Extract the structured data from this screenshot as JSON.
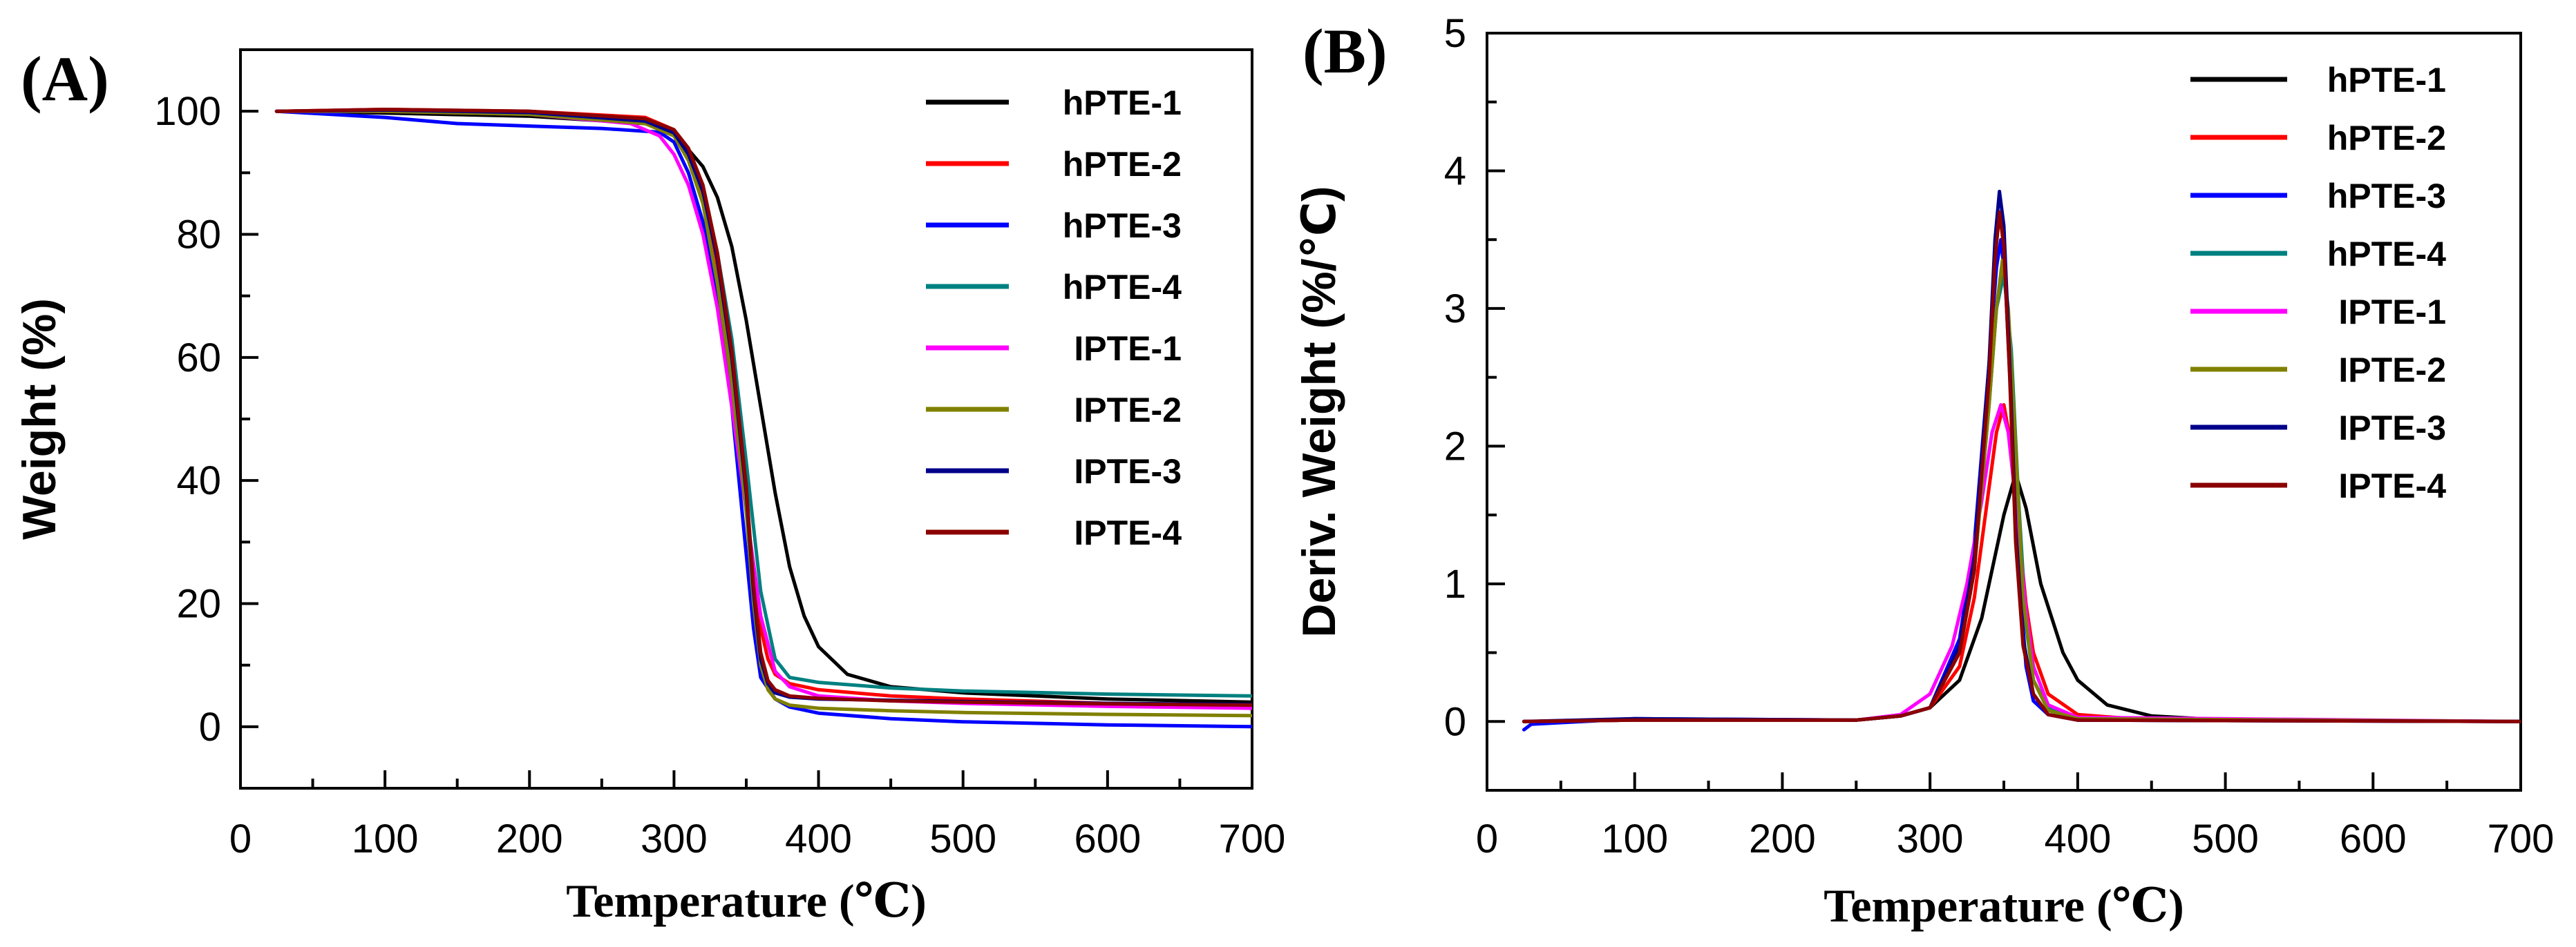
{
  "chart_data": [
    {
      "type": "line",
      "panel_label": "(A)",
      "title": "",
      "xlabel": "Temperature (℃)",
      "ylabel": "Weight (%)",
      "xlim": [
        0,
        700
      ],
      "ylim": [
        -10,
        110
      ],
      "xticks": [
        0,
        100,
        200,
        300,
        400,
        500,
        600,
        700
      ],
      "yticks": [
        0,
        20,
        40,
        60,
        80,
        100
      ],
      "grid": false,
      "legend_position": "top-right",
      "series": [
        {
          "name": "hPTE-1",
          "color": "#000000",
          "x": [
            25,
            100,
            200,
            280,
            300,
            320,
            330,
            340,
            350,
            360,
            370,
            380,
            390,
            400,
            420,
            450,
            500,
            600,
            700
          ],
          "y": [
            100,
            99.7,
            99.2,
            98,
            96.5,
            91,
            86,
            78,
            66,
            52,
            38,
            26,
            18,
            13,
            8.5,
            6.5,
            5.5,
            4.5,
            4
          ]
        },
        {
          "name": "hPTE-2",
          "color": "#ff0000",
          "x": [
            25,
            100,
            200,
            280,
            300,
            310,
            320,
            330,
            340,
            345,
            350,
            355,
            360,
            365,
            370,
            380,
            400,
            450,
            500,
            600,
            700
          ],
          "y": [
            100,
            100.3,
            100,
            99,
            97,
            93,
            86,
            74,
            58,
            47,
            36,
            25,
            16,
            11,
            8.5,
            7,
            6,
            5,
            4.5,
            3.8,
            3.5
          ]
        },
        {
          "name": "hPTE-3",
          "color": "#0000ff",
          "x": [
            25,
            100,
            150,
            200,
            250,
            290,
            300,
            310,
            320,
            330,
            340,
            345,
            350,
            355,
            360,
            370,
            380,
            400,
            450,
            500,
            600,
            700
          ],
          "y": [
            100,
            99,
            98,
            97.6,
            97.2,
            96.6,
            95,
            90,
            82,
            69,
            52,
            40,
            28,
            16,
            8,
            4.5,
            3.2,
            2.2,
            1.3,
            0.8,
            0.3,
            0
          ]
        },
        {
          "name": "hPTE-4",
          "color": "#008080",
          "x": [
            25,
            100,
            200,
            280,
            300,
            310,
            320,
            330,
            340,
            350,
            360,
            370,
            380,
            400,
            450,
            500,
            600,
            700
          ],
          "y": [
            100,
            100.2,
            99.8,
            98.5,
            96.5,
            93,
            87,
            77,
            63,
            43,
            22,
            11,
            8,
            7.2,
            6.3,
            5.8,
            5.3,
            5
          ]
        },
        {
          "name": "IPTE-1",
          "color": "#ff00ff",
          "x": [
            25,
            100,
            200,
            270,
            290,
            300,
            310,
            320,
            330,
            340,
            350,
            360,
            370,
            380,
            400,
            450,
            500,
            600,
            700
          ],
          "y": [
            100,
            100,
            99.5,
            98,
            96,
            93,
            88,
            80,
            68,
            52,
            35,
            18,
            9,
            6.5,
            5,
            4.2,
            3.8,
            3.3,
            3
          ]
        },
        {
          "name": "IPTE-2",
          "color": "#808000",
          "x": [
            25,
            100,
            200,
            280,
            300,
            310,
            320,
            330,
            340,
            350,
            355,
            360,
            365,
            370,
            380,
            400,
            450,
            500,
            600,
            700
          ],
          "y": [
            100,
            100,
            99.5,
            98,
            96,
            92,
            85,
            72,
            56,
            35,
            20,
            10,
            6,
            4.5,
            3.5,
            3,
            2.6,
            2.3,
            2,
            1.8
          ]
        },
        {
          "name": "IPTE-3",
          "color": "#00008b",
          "x": [
            25,
            100,
            200,
            280,
            300,
            310,
            320,
            330,
            340,
            350,
            355,
            360,
            365,
            370,
            380,
            400,
            450,
            500,
            600,
            700
          ],
          "y": [
            100,
            100.2,
            99.8,
            98.4,
            96.5,
            93,
            87,
            76,
            60,
            38,
            22,
            11,
            7,
            5.5,
            4.8,
            4.5,
            4.3,
            4.1,
            3.8,
            3.6
          ]
        },
        {
          "name": "IPTE-4",
          "color": "#8b0000",
          "x": [
            25,
            100,
            200,
            280,
            300,
            310,
            320,
            330,
            340,
            350,
            355,
            360,
            365,
            370,
            380,
            400,
            450,
            500,
            600,
            700
          ],
          "y": [
            100,
            100.3,
            100,
            98.8,
            97,
            94,
            88,
            77,
            61,
            39,
            23,
            12,
            7.5,
            6,
            5,
            4.6,
            4.2,
            4,
            3.7,
            3.5
          ]
        }
      ]
    },
    {
      "type": "line",
      "panel_label": "(B)",
      "title": "",
      "xlabel": "Temperature (℃)",
      "ylabel": "Deriv. Weight (%/℃)",
      "xlim": [
        0,
        700
      ],
      "ylim": [
        -0.5,
        5
      ],
      "xticks": [
        0,
        100,
        200,
        300,
        400,
        500,
        600,
        700
      ],
      "yticks": [
        0,
        1,
        2,
        3,
        4,
        5
      ],
      "grid": false,
      "legend_position": "top-right",
      "series": [
        {
          "name": "hPTE-1",
          "color": "#000000",
          "x": [
            25,
            100,
            250,
            280,
            300,
            320,
            335,
            350,
            358,
            365,
            375,
            390,
            400,
            420,
            450,
            500,
            700
          ],
          "y": [
            0,
            0.01,
            0.01,
            0.04,
            0.1,
            0.3,
            0.75,
            1.5,
            1.8,
            1.55,
            1.0,
            0.5,
            0.3,
            0.12,
            0.04,
            0.01,
            0
          ]
        },
        {
          "name": "hPTE-2",
          "color": "#ff0000",
          "x": [
            25,
            100,
            250,
            280,
            300,
            320,
            330,
            340,
            345,
            350,
            355,
            360,
            365,
            370,
            380,
            400,
            450,
            700
          ],
          "y": [
            0,
            0.01,
            0.01,
            0.04,
            0.1,
            0.4,
            0.9,
            1.7,
            2.1,
            2.3,
            2.0,
            1.4,
            0.85,
            0.5,
            0.2,
            0.05,
            0.01,
            0
          ]
        },
        {
          "name": "hPTE-3",
          "color": "#0000ff",
          "x": [
            25,
            30,
            100,
            250,
            280,
            300,
            320,
            330,
            340,
            345,
            348,
            351,
            355,
            360,
            365,
            370,
            380,
            400,
            700
          ],
          "y": [
            -0.06,
            -0.02,
            0.02,
            0.01,
            0.04,
            0.1,
            0.6,
            1.3,
            2.6,
            3.3,
            3.5,
            3.2,
            2.3,
            1.1,
            0.4,
            0.15,
            0.05,
            0.01,
            0
          ]
        },
        {
          "name": "hPTE-4",
          "color": "#008080",
          "x": [
            25,
            100,
            250,
            280,
            300,
            320,
            330,
            340,
            345,
            350,
            355,
            360,
            365,
            370,
            380,
            400,
            700
          ],
          "y": [
            0,
            0.01,
            0.01,
            0.04,
            0.1,
            0.5,
            1.1,
            2.3,
            3.0,
            3.25,
            2.7,
            1.6,
            0.7,
            0.3,
            0.1,
            0.02,
            0
          ]
        },
        {
          "name": "IPTE-1",
          "color": "#ff00ff",
          "x": [
            25,
            100,
            250,
            280,
            300,
            315,
            325,
            335,
            342,
            348,
            353,
            358,
            365,
            370,
            380,
            400,
            700
          ],
          "y": [
            0,
            0.01,
            0.01,
            0.05,
            0.2,
            0.55,
            1.0,
            1.6,
            2.1,
            2.3,
            2.1,
            1.6,
            0.8,
            0.4,
            0.12,
            0.03,
            0
          ]
        },
        {
          "name": "IPTE-2",
          "color": "#808000",
          "x": [
            25,
            100,
            250,
            280,
            300,
            320,
            330,
            340,
            345,
            349,
            353,
            358,
            363,
            370,
            380,
            400,
            700
          ],
          "y": [
            0,
            0.01,
            0.01,
            0.04,
            0.1,
            0.5,
            1.1,
            2.3,
            3.0,
            3.35,
            3.0,
            2.0,
            0.9,
            0.3,
            0.08,
            0.02,
            0
          ]
        },
        {
          "name": "IPTE-3",
          "color": "#00008b",
          "x": [
            25,
            100,
            250,
            280,
            300,
            320,
            330,
            340,
            344,
            347,
            350,
            354,
            358,
            363,
            370,
            380,
            400,
            700
          ],
          "y": [
            0,
            0.02,
            0.01,
            0.04,
            0.1,
            0.55,
            1.2,
            2.6,
            3.5,
            3.85,
            3.6,
            2.6,
            1.4,
            0.6,
            0.2,
            0.05,
            0.01,
            0
          ]
        },
        {
          "name": "IPTE-4",
          "color": "#8b0000",
          "x": [
            25,
            100,
            250,
            280,
            300,
            320,
            330,
            340,
            344,
            347,
            350,
            354,
            358,
            363,
            370,
            380,
            400,
            700
          ],
          "y": [
            0,
            0.01,
            0.01,
            0.04,
            0.1,
            0.5,
            1.1,
            2.5,
            3.35,
            3.7,
            3.45,
            2.5,
            1.3,
            0.55,
            0.2,
            0.05,
            0.01,
            0
          ]
        }
      ]
    }
  ]
}
